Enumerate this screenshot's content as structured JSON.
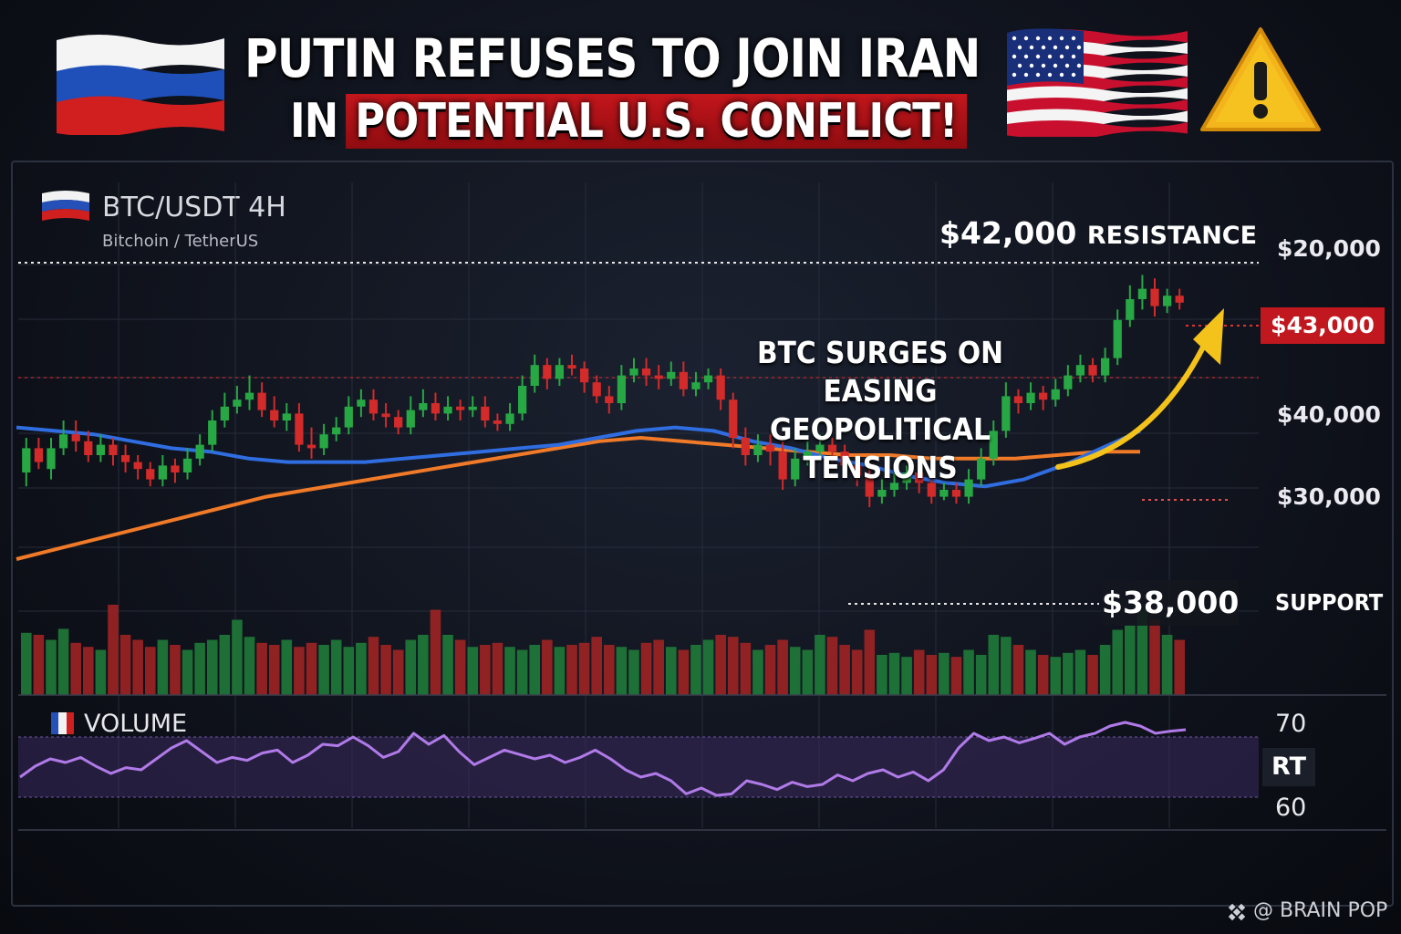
{
  "headline": {
    "line1": "PUTIN REFUSES TO JOIN IRAN",
    "line2_prefix": "IN",
    "line2_highlight": "POTENTIAL U.S. CONFLICT!"
  },
  "icons": [
    "russia-flag-icon",
    "usa-flag-icon",
    "warning-icon",
    "france-flag-icon",
    "binance-logo-icon"
  ],
  "colors": {
    "bull": "#27a844",
    "bear": "#d32a2a",
    "ma_blue": "#2f6de0",
    "ma_orange": "#f07a28",
    "oscillator": "#b07ae8",
    "arrow": "#f3c21b",
    "resistance_badge": "#c0181e"
  },
  "chart_data": {
    "type": "candlestick",
    "title": "BTC/USDT 4H",
    "subtitle": "Bitchoin / TetherUS",
    "y_tick_labels": [
      "$20,000",
      "$43,000",
      "$40,000",
      "$30,000"
    ],
    "resistance_label": "$42,000",
    "resistance_word": "RESISTANCE",
    "current_price_label": "$43,000",
    "support_price": "$38,000",
    "support_word": "SUPPORT",
    "annotation_line1_bold": "BTC SURGES",
    "annotation_line1_rest": "ON EASING",
    "annotation_line2": "GEOPOLITICAL TENSIONS",
    "candles": [
      [
        0.4,
        0.47,
        0.36,
        0.5,
        0
      ],
      [
        0.47,
        0.43,
        0.41,
        0.5,
        1
      ],
      [
        0.41,
        0.47,
        0.38,
        0.5,
        0
      ],
      [
        0.47,
        0.51,
        0.45,
        0.55,
        0
      ],
      [
        0.51,
        0.49,
        0.46,
        0.55,
        1
      ],
      [
        0.49,
        0.45,
        0.43,
        0.52,
        1
      ],
      [
        0.45,
        0.48,
        0.43,
        0.51,
        0
      ],
      [
        0.48,
        0.45,
        0.42,
        0.5,
        1
      ],
      [
        0.45,
        0.43,
        0.4,
        0.48,
        1
      ],
      [
        0.43,
        0.41,
        0.38,
        0.45,
        1
      ],
      [
        0.41,
        0.38,
        0.36,
        0.43,
        1
      ],
      [
        0.38,
        0.42,
        0.36,
        0.45,
        0
      ],
      [
        0.42,
        0.4,
        0.37,
        0.44,
        1
      ],
      [
        0.4,
        0.44,
        0.38,
        0.47,
        0
      ],
      [
        0.44,
        0.48,
        0.42,
        0.51,
        0
      ],
      [
        0.48,
        0.55,
        0.46,
        0.58,
        0
      ],
      [
        0.55,
        0.59,
        0.53,
        0.63,
        0
      ],
      [
        0.59,
        0.61,
        0.57,
        0.65,
        0
      ],
      [
        0.61,
        0.63,
        0.58,
        0.68,
        0
      ],
      [
        0.63,
        0.58,
        0.56,
        0.66,
        1
      ],
      [
        0.58,
        0.55,
        0.53,
        0.62,
        1
      ],
      [
        0.55,
        0.57,
        0.52,
        0.6,
        0
      ],
      [
        0.57,
        0.48,
        0.46,
        0.6,
        1
      ],
      [
        0.48,
        0.47,
        0.44,
        0.53,
        1
      ],
      [
        0.47,
        0.51,
        0.45,
        0.54,
        0
      ],
      [
        0.51,
        0.53,
        0.49,
        0.56,
        0
      ],
      [
        0.53,
        0.59,
        0.51,
        0.62,
        0
      ],
      [
        0.59,
        0.61,
        0.56,
        0.64,
        0
      ],
      [
        0.61,
        0.57,
        0.55,
        0.64,
        1
      ],
      [
        0.57,
        0.56,
        0.53,
        0.6,
        1
      ],
      [
        0.56,
        0.53,
        0.51,
        0.58,
        1
      ],
      [
        0.53,
        0.58,
        0.51,
        0.62,
        0
      ],
      [
        0.58,
        0.6,
        0.56,
        0.64,
        0
      ],
      [
        0.6,
        0.57,
        0.55,
        0.63,
        1
      ],
      [
        0.57,
        0.59,
        0.55,
        0.62,
        0
      ],
      [
        0.59,
        0.58,
        0.55,
        0.61,
        1
      ],
      [
        0.58,
        0.59,
        0.56,
        0.62,
        0
      ],
      [
        0.59,
        0.55,
        0.53,
        0.62,
        1
      ],
      [
        0.55,
        0.54,
        0.52,
        0.57,
        1
      ],
      [
        0.54,
        0.57,
        0.52,
        0.6,
        0
      ],
      [
        0.57,
        0.65,
        0.55,
        0.68,
        0
      ],
      [
        0.65,
        0.71,
        0.63,
        0.74,
        0
      ],
      [
        0.71,
        0.67,
        0.64,
        0.73,
        1
      ],
      [
        0.67,
        0.71,
        0.65,
        0.73,
        0
      ],
      [
        0.71,
        0.7,
        0.68,
        0.74,
        1
      ],
      [
        0.7,
        0.66,
        0.63,
        0.72,
        1
      ],
      [
        0.66,
        0.62,
        0.6,
        0.68,
        1
      ],
      [
        0.62,
        0.6,
        0.57,
        0.65,
        1
      ],
      [
        0.6,
        0.68,
        0.58,
        0.71,
        0
      ],
      [
        0.68,
        0.7,
        0.66,
        0.73,
        0
      ],
      [
        0.7,
        0.68,
        0.65,
        0.73,
        1
      ],
      [
        0.68,
        0.67,
        0.64,
        0.71,
        1
      ],
      [
        0.67,
        0.69,
        0.65,
        0.72,
        0
      ],
      [
        0.69,
        0.64,
        0.62,
        0.72,
        1
      ],
      [
        0.64,
        0.66,
        0.62,
        0.69,
        0
      ],
      [
        0.66,
        0.68,
        0.64,
        0.7,
        0
      ],
      [
        0.68,
        0.61,
        0.58,
        0.7,
        1
      ],
      [
        0.61,
        0.5,
        0.47,
        0.63,
        1
      ],
      [
        0.5,
        0.45,
        0.42,
        0.53,
        1
      ],
      [
        0.45,
        0.48,
        0.43,
        0.51,
        0
      ],
      [
        0.48,
        0.46,
        0.42,
        0.51,
        1
      ],
      [
        0.46,
        0.38,
        0.35,
        0.49,
        1
      ],
      [
        0.38,
        0.44,
        0.36,
        0.47,
        0
      ],
      [
        0.44,
        0.46,
        0.42,
        0.49,
        0
      ],
      [
        0.46,
        0.48,
        0.44,
        0.51,
        0
      ],
      [
        0.48,
        0.46,
        0.43,
        0.5,
        1
      ],
      [
        0.46,
        0.42,
        0.39,
        0.48,
        1
      ],
      [
        0.42,
        0.39,
        0.36,
        0.44,
        1
      ],
      [
        0.39,
        0.33,
        0.3,
        0.41,
        1
      ],
      [
        0.33,
        0.35,
        0.31,
        0.38,
        0
      ],
      [
        0.35,
        0.37,
        0.33,
        0.4,
        0
      ],
      [
        0.37,
        0.4,
        0.35,
        0.42,
        0
      ],
      [
        0.4,
        0.37,
        0.34,
        0.42,
        1
      ],
      [
        0.37,
        0.33,
        0.31,
        0.39,
        1
      ],
      [
        0.33,
        0.35,
        0.32,
        0.37,
        0
      ],
      [
        0.35,
        0.33,
        0.31,
        0.37,
        1
      ],
      [
        0.33,
        0.38,
        0.31,
        0.41,
        0
      ],
      [
        0.38,
        0.44,
        0.36,
        0.47,
        0
      ],
      [
        0.44,
        0.52,
        0.42,
        0.55,
        0
      ],
      [
        0.52,
        0.62,
        0.5,
        0.66,
        0
      ],
      [
        0.62,
        0.6,
        0.57,
        0.64,
        1
      ],
      [
        0.6,
        0.63,
        0.58,
        0.66,
        0
      ],
      [
        0.63,
        0.61,
        0.58,
        0.65,
        1
      ],
      [
        0.61,
        0.64,
        0.59,
        0.67,
        0
      ],
      [
        0.64,
        0.68,
        0.62,
        0.71,
        0
      ],
      [
        0.68,
        0.71,
        0.66,
        0.74,
        0
      ],
      [
        0.71,
        0.68,
        0.66,
        0.73,
        1
      ],
      [
        0.68,
        0.73,
        0.66,
        0.76,
        0
      ],
      [
        0.73,
        0.84,
        0.71,
        0.87,
        0
      ],
      [
        0.84,
        0.9,
        0.82,
        0.94,
        0
      ],
      [
        0.9,
        0.93,
        0.87,
        0.97,
        0
      ],
      [
        0.93,
        0.88,
        0.85,
        0.96,
        1
      ],
      [
        0.88,
        0.91,
        0.86,
        0.93,
        0
      ],
      [
        0.91,
        0.89,
        0.87,
        0.93,
        1
      ]
    ],
    "volume": [
      0.62,
      0.6,
      0.55,
      0.66,
      0.52,
      0.48,
      0.45,
      0.9,
      0.6,
      0.55,
      0.48,
      0.55,
      0.5,
      0.45,
      0.52,
      0.55,
      0.6,
      0.75,
      0.58,
      0.52,
      0.5,
      0.55,
      0.48,
      0.52,
      0.5,
      0.55,
      0.48,
      0.52,
      0.58,
      0.5,
      0.45,
      0.55,
      0.6,
      0.85,
      0.6,
      0.55,
      0.48,
      0.5,
      0.52,
      0.48,
      0.45,
      0.5,
      0.55,
      0.48,
      0.5,
      0.52,
      0.58,
      0.5,
      0.48,
      0.45,
      0.52,
      0.55,
      0.48,
      0.45,
      0.5,
      0.55,
      0.6,
      0.58,
      0.52,
      0.45,
      0.5,
      0.55,
      0.48,
      0.45,
      0.6,
      0.58,
      0.5,
      0.45,
      0.65,
      0.4,
      0.42,
      0.38,
      0.45,
      0.4,
      0.42,
      0.38,
      0.45,
      0.4,
      0.6,
      0.58,
      0.5,
      0.45,
      0.4,
      0.38,
      0.42,
      0.45,
      0.4,
      0.5,
      0.65,
      0.7,
      0.85,
      0.75,
      0.6,
      0.55
    ],
    "ma_blue": [
      0.53,
      0.52,
      0.51,
      0.49,
      0.47,
      0.46,
      0.44,
      0.43,
      0.43,
      0.43,
      0.44,
      0.45,
      0.46,
      0.47,
      0.48,
      0.5,
      0.52,
      0.53,
      0.52,
      0.49,
      0.47,
      0.44,
      0.42,
      0.39,
      0.37,
      0.36,
      0.38,
      0.42,
      0.47,
      0.52
    ],
    "ma_orange": [
      0.15,
      0.18,
      0.21,
      0.24,
      0.27,
      0.3,
      0.33,
      0.35,
      0.37,
      0.39,
      0.41,
      0.43,
      0.45,
      0.47,
      0.49,
      0.5,
      0.49,
      0.48,
      0.47,
      0.46,
      0.45,
      0.45,
      0.44,
      0.44,
      0.44,
      0.45,
      0.46,
      0.46
    ],
    "oscillator": {
      "label": "VOLUME",
      "tick_labels": [
        "70",
        "RT",
        "60"
      ],
      "values": [
        0.35,
        0.5,
        0.6,
        0.55,
        0.62,
        0.5,
        0.4,
        0.48,
        0.45,
        0.6,
        0.75,
        0.85,
        0.7,
        0.55,
        0.62,
        0.58,
        0.68,
        0.72,
        0.55,
        0.65,
        0.8,
        0.78,
        0.9,
        0.78,
        0.62,
        0.7,
        0.95,
        0.8,
        0.92,
        0.7,
        0.52,
        0.62,
        0.72,
        0.66,
        0.6,
        0.65,
        0.55,
        0.62,
        0.72,
        0.6,
        0.45,
        0.35,
        0.4,
        0.3,
        0.12,
        0.2,
        0.1,
        0.12,
        0.3,
        0.25,
        0.18,
        0.28,
        0.22,
        0.25,
        0.38,
        0.3,
        0.4,
        0.45,
        0.35,
        0.42,
        0.3,
        0.45,
        0.75,
        0.95,
        0.85,
        0.9,
        0.82,
        0.88,
        0.95,
        0.8,
        0.9,
        0.95,
        1.05,
        1.1,
        1.05,
        0.95,
        0.98,
        1.0
      ]
    }
  },
  "watermark": "@ BRAIN POP"
}
